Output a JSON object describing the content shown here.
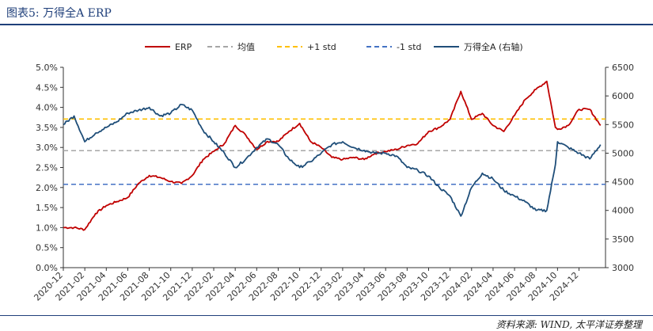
{
  "figure": {
    "title": "图表5: 万得全A ERP",
    "source": "资料来源: WIND, 太平洋证券整理"
  },
  "chart_data": {
    "type": "line",
    "x_ticks": [
      "2020-12",
      "2021-02",
      "2021-04",
      "2021-06",
      "2021-08",
      "2021-10",
      "2021-12",
      "2022-02",
      "2022-04",
      "2022-06",
      "2022-08",
      "2022-10",
      "2022-12",
      "2023-02",
      "2023-04",
      "2023-06",
      "2023-08",
      "2023-10",
      "2023-12",
      "2024-02",
      "2024-04",
      "2024-06",
      "2024-08",
      "2024-10",
      "2024-12"
    ],
    "y_left": {
      "ticks": [
        "0.0%",
        "0.5%",
        "1.0%",
        "1.5%",
        "2.0%",
        "2.5%",
        "3.0%",
        "3.5%",
        "4.0%",
        "4.5%",
        "5.0%"
      ],
      "min": 0,
      "max": 5.0
    },
    "y_right": {
      "ticks": [
        "3000",
        "3500",
        "4000",
        "4500",
        "5000",
        "5500",
        "6000",
        "6500"
      ],
      "min": 3000,
      "max": 6500
    },
    "legend_position": "top",
    "series": [
      {
        "name": "ERP",
        "axis": "left",
        "color": "#c00000",
        "style": "solid",
        "points": [
          [
            "2020-12",
            1.0
          ],
          [
            "2021-01",
            1.0
          ],
          [
            "2021-02",
            0.95
          ],
          [
            "2021-03",
            1.35
          ],
          [
            "2021-04",
            1.55
          ],
          [
            "2021-05",
            1.65
          ],
          [
            "2021-06",
            1.75
          ],
          [
            "2021-07",
            2.1
          ],
          [
            "2021-08",
            2.3
          ],
          [
            "2021-09",
            2.25
          ],
          [
            "2021-10",
            2.15
          ],
          [
            "2021-11",
            2.1
          ],
          [
            "2021-12",
            2.3
          ],
          [
            "2022-01",
            2.7
          ],
          [
            "2022-02",
            2.9
          ],
          [
            "2022-03",
            3.1
          ],
          [
            "2022-04",
            3.55
          ],
          [
            "2022-05",
            3.3
          ],
          [
            "2022-06",
            2.95
          ],
          [
            "2022-07",
            3.15
          ],
          [
            "2022-08",
            3.15
          ],
          [
            "2022-09",
            3.4
          ],
          [
            "2022-10",
            3.6
          ],
          [
            "2022-11",
            3.15
          ],
          [
            "2022-12",
            3.0
          ],
          [
            "2023-01",
            2.75
          ],
          [
            "2023-02",
            2.7
          ],
          [
            "2023-03",
            2.75
          ],
          [
            "2023-04",
            2.7
          ],
          [
            "2023-05",
            2.85
          ],
          [
            "2023-06",
            2.9
          ],
          [
            "2023-07",
            2.95
          ],
          [
            "2023-08",
            3.05
          ],
          [
            "2023-09",
            3.1
          ],
          [
            "2023-10",
            3.4
          ],
          [
            "2023-11",
            3.5
          ],
          [
            "2023-12",
            3.7
          ],
          [
            "2024-01",
            4.4
          ],
          [
            "2024-02",
            3.7
          ],
          [
            "2024-03",
            3.85
          ],
          [
            "2024-04",
            3.55
          ],
          [
            "2024-05",
            3.4
          ],
          [
            "2024-06",
            3.8
          ],
          [
            "2024-07",
            4.2
          ],
          [
            "2024-08",
            4.45
          ],
          [
            "2024-09",
            4.65
          ],
          [
            "2024-09-25",
            3.5
          ],
          [
            "2024-10",
            3.45
          ],
          [
            "2024-11",
            3.55
          ],
          [
            "2024-12",
            3.95
          ],
          [
            "2025-01",
            3.95
          ],
          [
            "2025-02",
            3.55
          ]
        ]
      },
      {
        "name": "均值",
        "axis": "left",
        "color": "#a6a6a6",
        "style": "dash",
        "value": 2.92
      },
      {
        "name": "+1 std",
        "axis": "left",
        "color": "#ffc000",
        "style": "dash",
        "value": 3.71
      },
      {
        "name": "-1 std",
        "axis": "left",
        "color": "#4472c4",
        "style": "dash",
        "value": 2.08
      },
      {
        "name": "万得全A (右轴)",
        "axis": "right",
        "color": "#1f4e79",
        "style": "solid",
        "points": [
          [
            "2020-12",
            5500
          ],
          [
            "2021-01",
            5650
          ],
          [
            "2021-02",
            5200
          ],
          [
            "2021-03",
            5350
          ],
          [
            "2021-04",
            5450
          ],
          [
            "2021-05",
            5550
          ],
          [
            "2021-06",
            5700
          ],
          [
            "2021-07",
            5750
          ],
          [
            "2021-08",
            5800
          ],
          [
            "2021-09",
            5650
          ],
          [
            "2021-10",
            5700
          ],
          [
            "2021-11",
            5850
          ],
          [
            "2021-12",
            5750
          ],
          [
            "2022-01",
            5400
          ],
          [
            "2022-02",
            5200
          ],
          [
            "2022-03",
            5000
          ],
          [
            "2022-04",
            4750
          ],
          [
            "2022-05",
            4900
          ],
          [
            "2022-06",
            5100
          ],
          [
            "2022-07",
            5250
          ],
          [
            "2022-08",
            5150
          ],
          [
            "2022-09",
            4900
          ],
          [
            "2022-10",
            4750
          ],
          [
            "2022-11",
            4850
          ],
          [
            "2022-12",
            5000
          ],
          [
            "2023-01",
            5150
          ],
          [
            "2023-02",
            5200
          ],
          [
            "2023-03",
            5100
          ],
          [
            "2023-04",
            5050
          ],
          [
            "2023-05",
            5000
          ],
          [
            "2023-06",
            5000
          ],
          [
            "2023-07",
            4950
          ],
          [
            "2023-08",
            4750
          ],
          [
            "2023-09",
            4700
          ],
          [
            "2023-10",
            4600
          ],
          [
            "2023-11",
            4400
          ],
          [
            "2023-12",
            4250
          ],
          [
            "2024-01",
            3900
          ],
          [
            "2024-02",
            4400
          ],
          [
            "2024-03",
            4650
          ],
          [
            "2024-04",
            4550
          ],
          [
            "2024-05",
            4350
          ],
          [
            "2024-06",
            4250
          ],
          [
            "2024-07",
            4150
          ],
          [
            "2024-08",
            4000
          ],
          [
            "2024-09",
            4000
          ],
          [
            "2024-09-25",
            4800
          ],
          [
            "2024-10",
            5200
          ],
          [
            "2024-11",
            5100
          ],
          [
            "2024-12",
            5000
          ],
          [
            "2025-01",
            4900
          ],
          [
            "2025-02",
            5150
          ]
        ]
      }
    ]
  }
}
